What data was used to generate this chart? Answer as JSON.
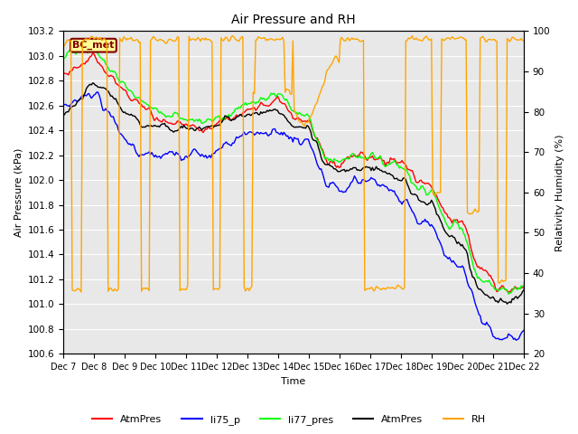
{
  "title": "Air Pressure and RH",
  "xlabel": "Time",
  "ylabel_left": "Air Pressure (kPa)",
  "ylabel_right": "Relativity Humidity (%)",
  "ylim_left": [
    100.6,
    103.2
  ],
  "ylim_right": [
    20,
    100
  ],
  "yticks_left": [
    100.6,
    100.8,
    101.0,
    101.2,
    101.4,
    101.6,
    101.8,
    102.0,
    102.2,
    102.4,
    102.6,
    102.8,
    103.0,
    103.2
  ],
  "yticks_right": [
    20,
    30,
    40,
    50,
    60,
    70,
    80,
    90,
    100
  ],
  "xtick_labels": [
    "Dec 7",
    "Dec 8",
    "Dec 9",
    "Dec 10",
    "Dec 11",
    "Dec 12",
    "Dec 13",
    "Dec 14",
    "Dec 15",
    "Dec 16",
    "Dec 17",
    "Dec 18",
    "Dec 19",
    "Dec 20",
    "Dec 21",
    "Dec 22"
  ],
  "legend_labels": [
    "AtmPres",
    "li75_p",
    "li77_pres",
    "AtmPres",
    "RH"
  ],
  "legend_colors": [
    "red",
    "blue",
    "lime",
    "black",
    "orange"
  ],
  "bc_met_box_color": "#FFFF99",
  "bc_met_text_color": "#800000",
  "line_colors": [
    "red",
    "blue",
    "lime",
    "black",
    "orange"
  ],
  "plot_bg_color": "#e8e8e8",
  "grid_color": "white",
  "figsize": [
    6.4,
    4.8
  ],
  "dpi": 100
}
